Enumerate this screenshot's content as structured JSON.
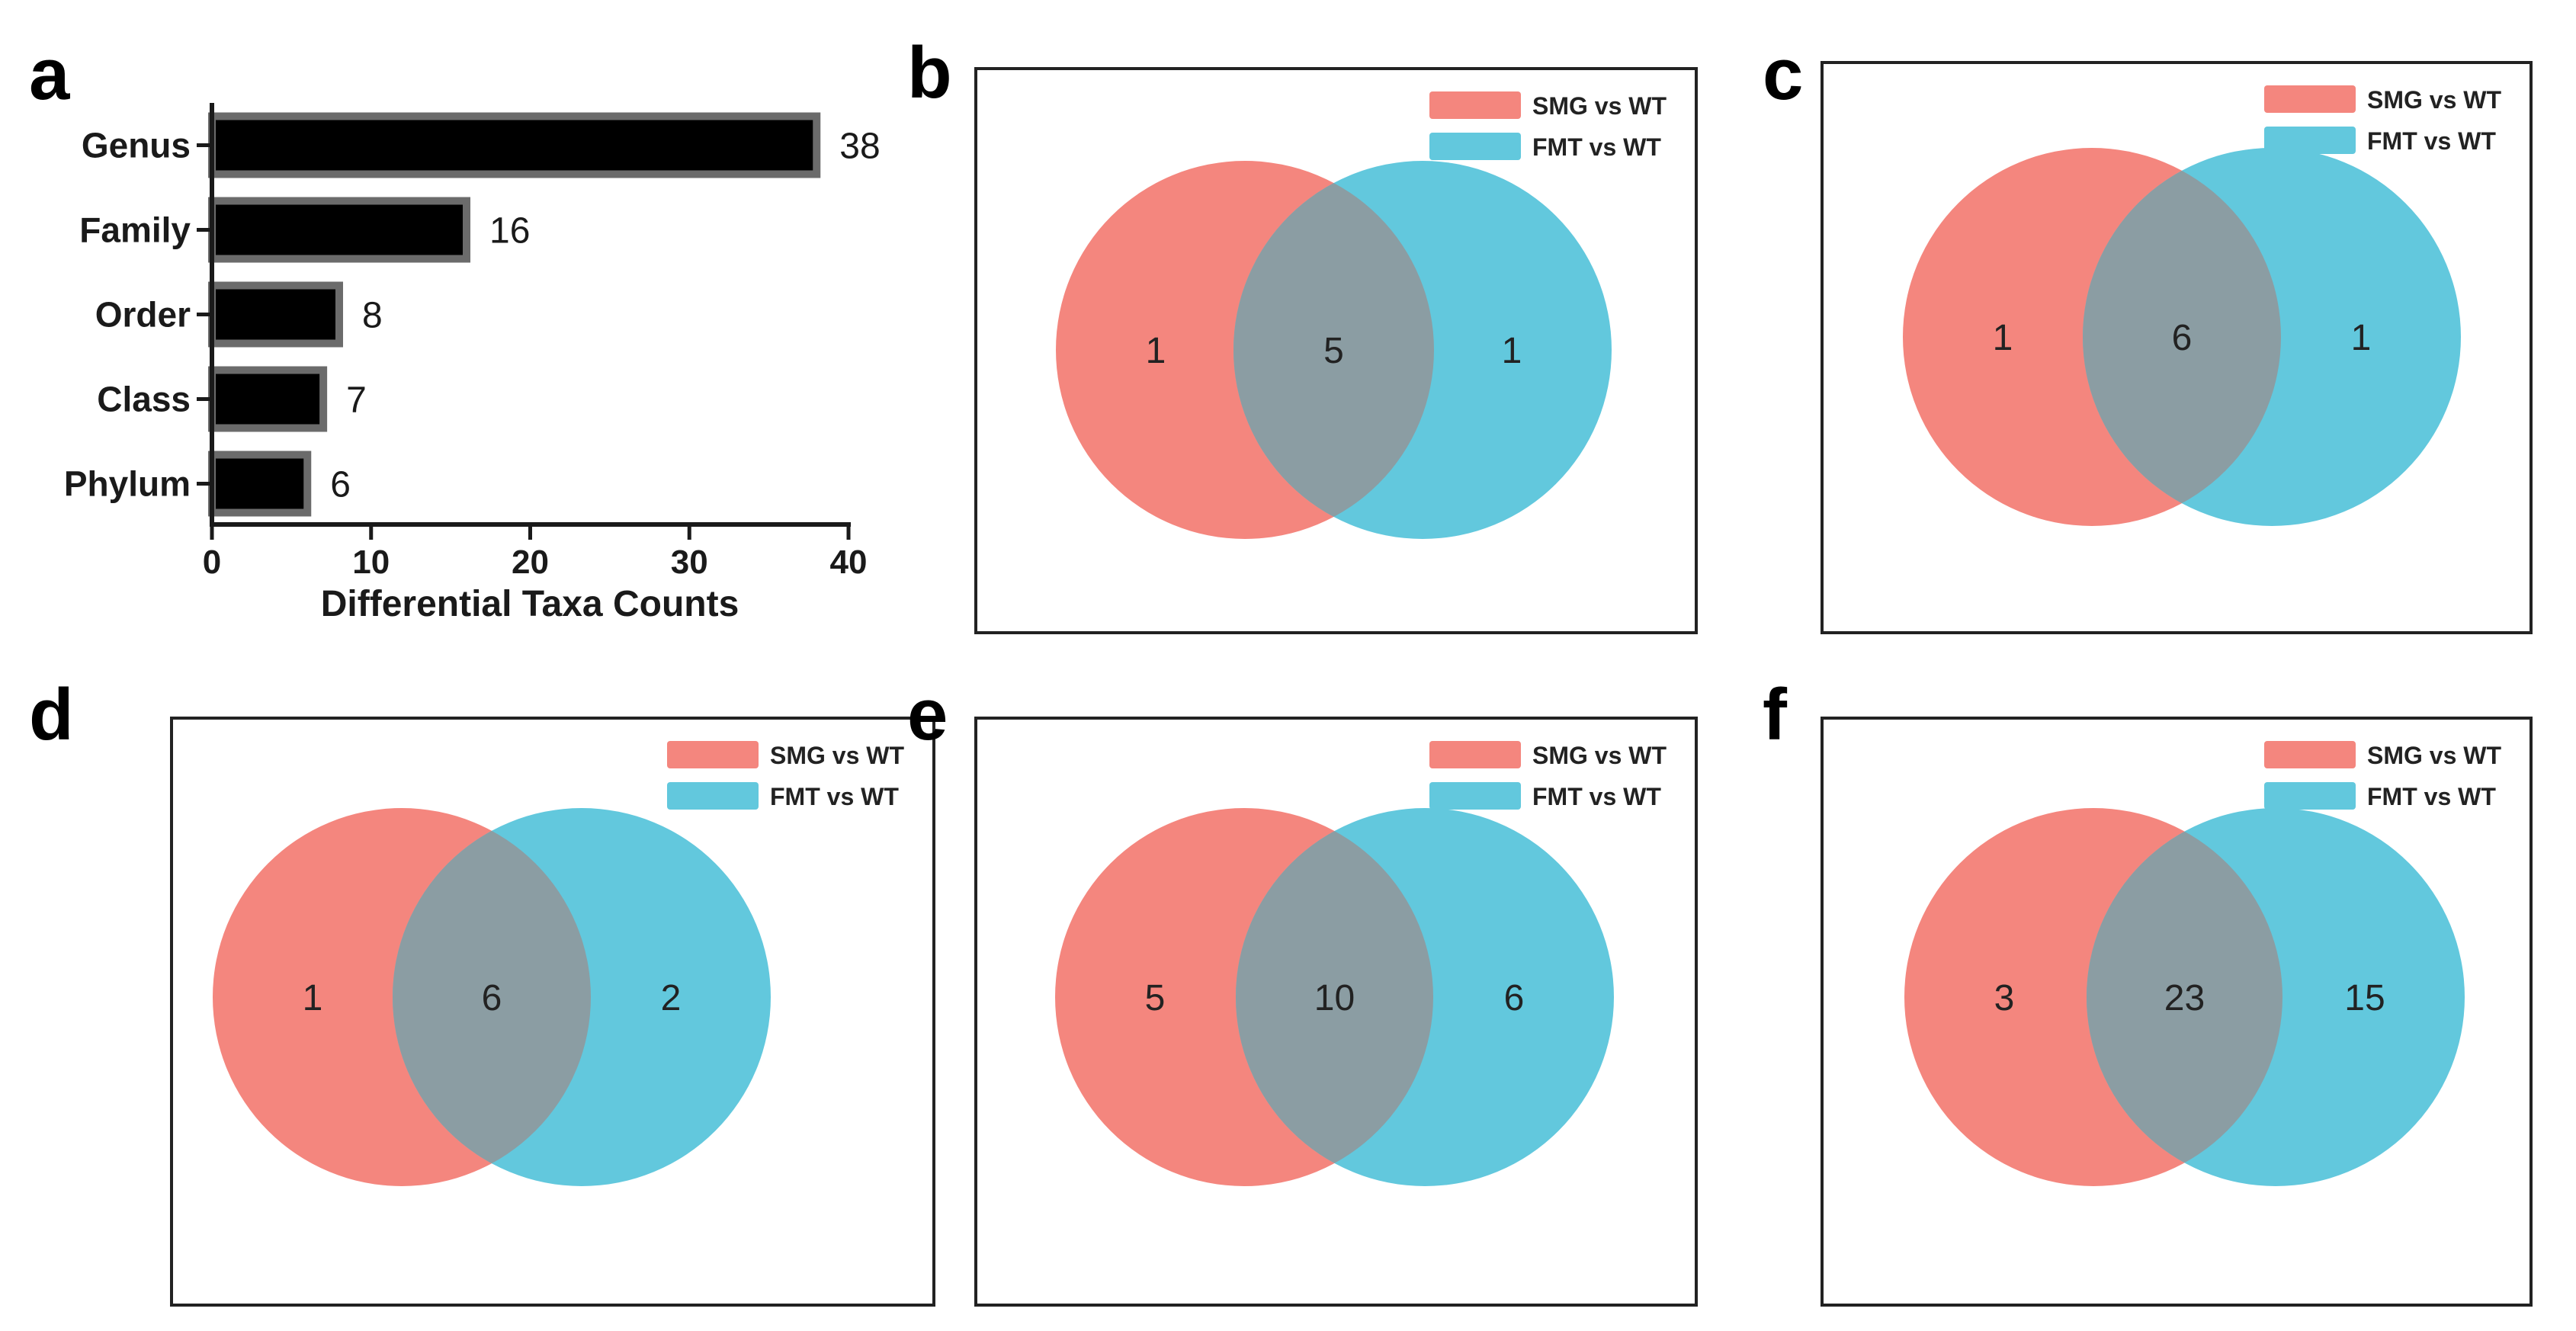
{
  "colors": {
    "bar_fill": "#000000",
    "bar_stroke": "#6b6b6b",
    "set1": "#f4867e",
    "set2": "#62c8dd",
    "overlap": "#8b9da3",
    "panel_border": "#222222"
  },
  "chart_data": [
    {
      "panel": "a",
      "type": "bar",
      "orientation": "horizontal",
      "categories": [
        "Genus",
        "Family",
        "Order",
        "Class",
        "Phylum"
      ],
      "values": [
        38,
        16,
        8,
        7,
        6
      ],
      "xlabel": "Differential Taxa Counts",
      "ylabel": "",
      "xlim": [
        0,
        40
      ],
      "xticks": [
        "0",
        "10",
        "20",
        "30",
        "40"
      ]
    },
    {
      "panel": "b",
      "type": "venn",
      "sets": [
        "SMG vs WT",
        "FMT vs WT"
      ],
      "only_a": "1",
      "both": "5",
      "only_b": "1"
    },
    {
      "panel": "c",
      "type": "venn",
      "sets": [
        "SMG vs WT",
        "FMT vs WT"
      ],
      "only_a": "1",
      "both": "6",
      "only_b": "1"
    },
    {
      "panel": "d",
      "type": "venn",
      "sets": [
        "SMG vs WT",
        "FMT vs WT"
      ],
      "only_a": "1",
      "both": "6",
      "only_b": "2"
    },
    {
      "panel": "e",
      "type": "venn",
      "sets": [
        "SMG vs WT",
        "FMT vs WT"
      ],
      "only_a": "5",
      "both": "10",
      "only_b": "6"
    },
    {
      "panel": "f",
      "type": "venn",
      "sets": [
        "SMG vs WT",
        "FMT vs WT"
      ],
      "only_a": "3",
      "both": "23",
      "only_b": "15"
    }
  ]
}
